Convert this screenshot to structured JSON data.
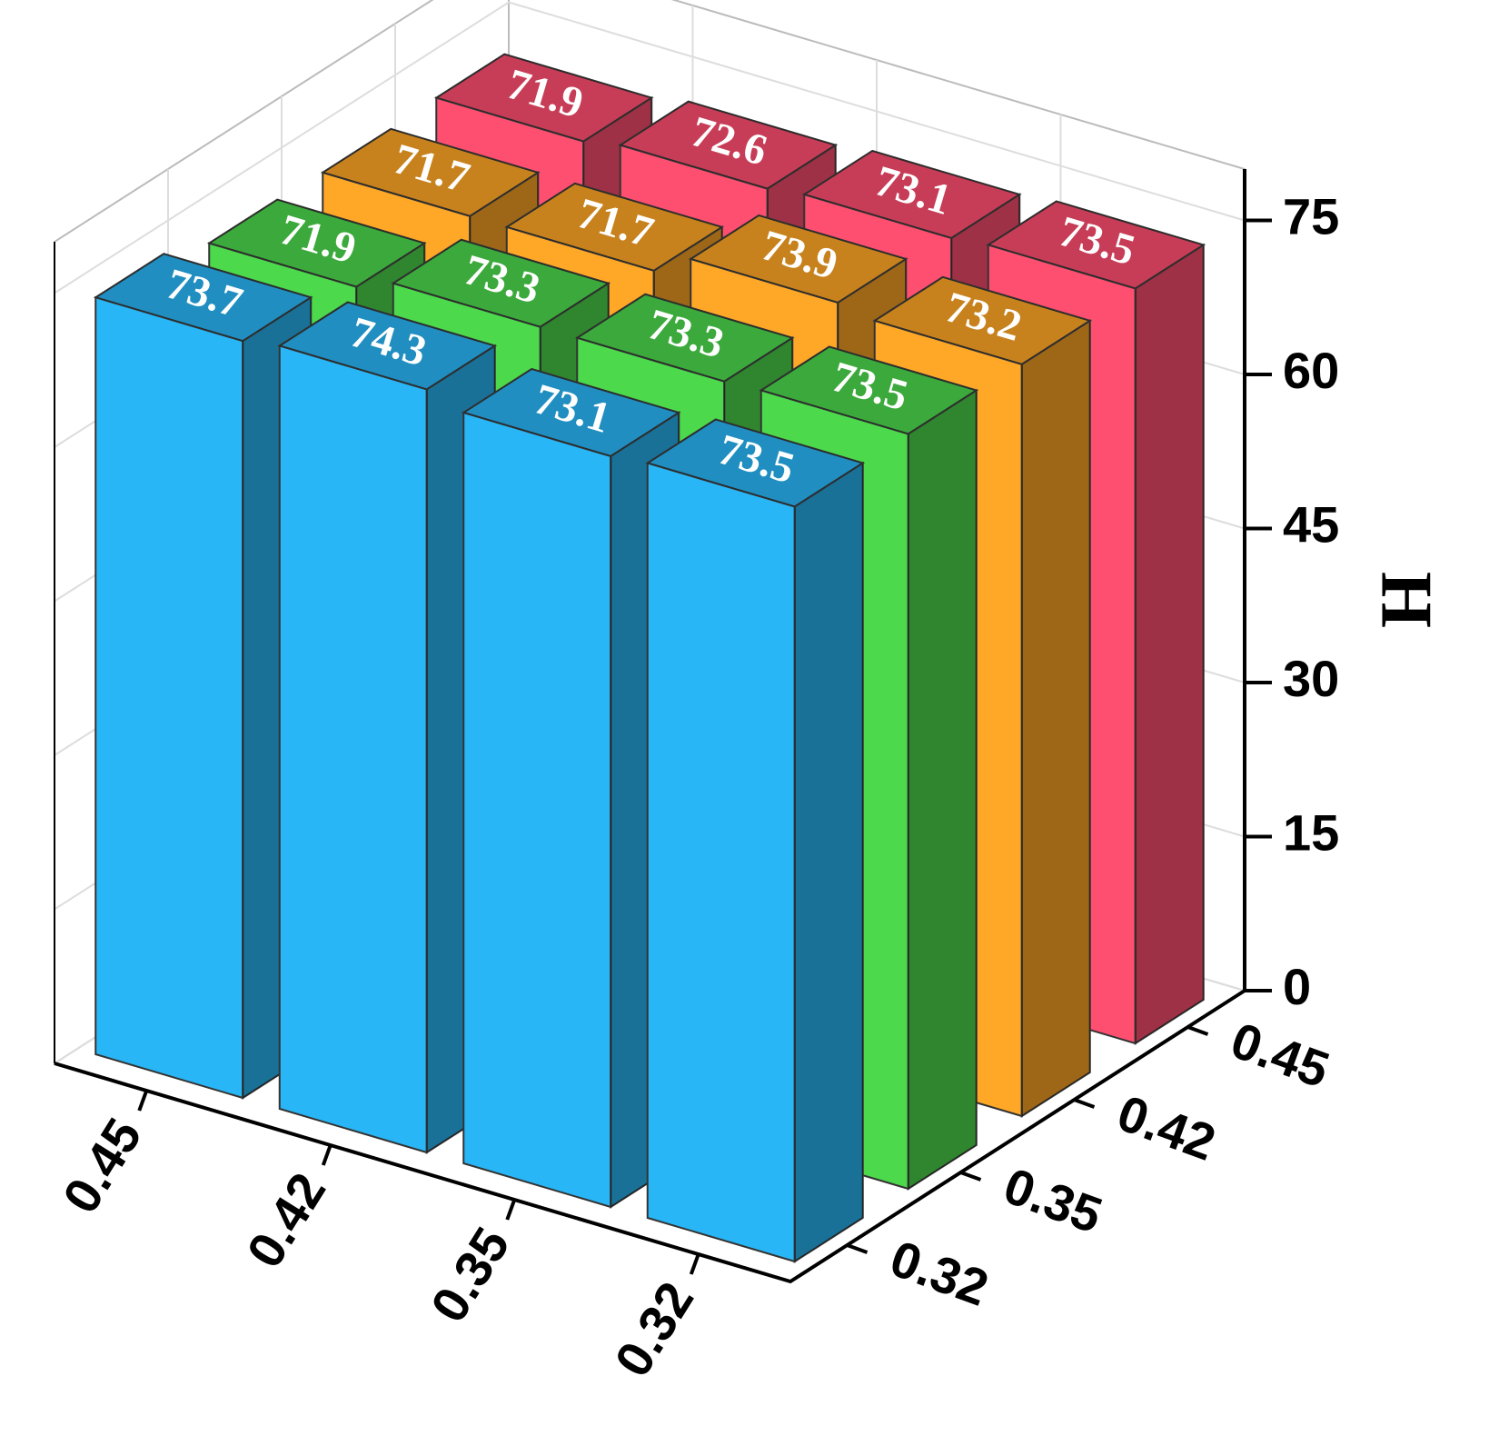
{
  "chart_data": {
    "type": "bar3d",
    "categories": [
      "0.45",
      "0.42",
      "0.35",
      "0.32"
    ],
    "series": [
      {
        "name": "0.32",
        "color": "#29b6f6",
        "values": [
          73.7,
          74.3,
          73.1,
          73.5
        ]
      },
      {
        "name": "0.35",
        "color": "#4cd94c",
        "values": [
          71.9,
          73.3,
          73.3,
          73.5
        ]
      },
      {
        "name": "0.42",
        "color": "#ffa726",
        "values": [
          71.7,
          71.7,
          73.9,
          73.2
        ]
      },
      {
        "name": "0.45",
        "color": "#ff4f70",
        "values": [
          71.9,
          72.6,
          73.1,
          73.5
        ]
      }
    ],
    "ylabel": "H",
    "ylim": [
      0,
      80
    ],
    "yticks": [
      0,
      15,
      30,
      45,
      60,
      75
    ],
    "grid": true
  }
}
